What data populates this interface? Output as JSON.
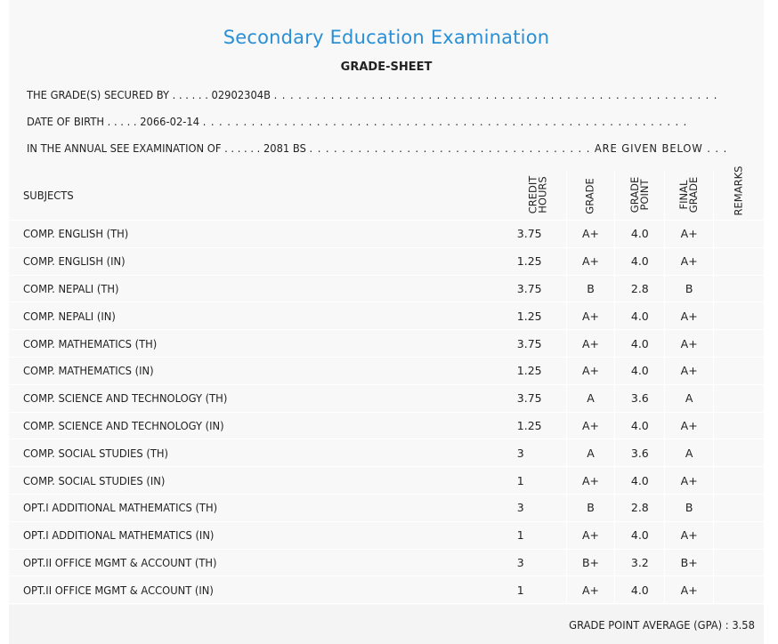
{
  "header": {
    "title": "Secondary Education Examination",
    "subtitle": "GRADE-SHEET"
  },
  "info": {
    "secured_by_label": "THE GRADE(S) SECURED BY . . . . . .",
    "symbol_number": "02902304B",
    "secured_by_tail": ". . . . . . . . . . . . . . . . . . . . . . . . . . . . . . . . . . . . . . . . . . . . . . . . . . . . . . .",
    "dob_label": "DATE OF BIRTH . . . . .",
    "dob": "2066-02-14",
    "dob_tail": ". . . . . . . . . . . . . . . . . . . . . . . . . . . . . . . . . . . . . . . . . . . . . . . . . . . . . . . . . . . .",
    "exam_label": "IN THE ANNUAL SEE EXAMINATION OF . . . . . .",
    "exam_year": "2081 BS",
    "exam_tail": ". . . . . . . . . . . . . . . . . . . . . . . . . . . . . . . . . . . ARE GIVEN BELOW . . ."
  },
  "table": {
    "headers": {
      "subjects": "SUBJECTS",
      "credit_hours_1": "CREDIT",
      "credit_hours_2": "HOURS",
      "grade": "GRADE",
      "grade_point_1": "GRADE",
      "grade_point_2": "POINT",
      "final_grade_1": "FINAL",
      "final_grade_2": "GRADE",
      "remarks": "REMARKS"
    },
    "rows": [
      {
        "subject": "COMP. ENGLISH (TH)",
        "credit": "3.75",
        "grade": "A+",
        "point": "4.0",
        "final": "A+",
        "remarks": ""
      },
      {
        "subject": "COMP. ENGLISH (IN)",
        "credit": "1.25",
        "grade": "A+",
        "point": "4.0",
        "final": "A+",
        "remarks": ""
      },
      {
        "subject": "COMP. NEPALI (TH)",
        "credit": "3.75",
        "grade": "B",
        "point": "2.8",
        "final": "B",
        "remarks": ""
      },
      {
        "subject": "COMP. NEPALI (IN)",
        "credit": "1.25",
        "grade": "A+",
        "point": "4.0",
        "final": "A+",
        "remarks": ""
      },
      {
        "subject": "COMP. MATHEMATICS (TH)",
        "credit": "3.75",
        "grade": "A+",
        "point": "4.0",
        "final": "A+",
        "remarks": ""
      },
      {
        "subject": "COMP. MATHEMATICS (IN)",
        "credit": "1.25",
        "grade": "A+",
        "point": "4.0",
        "final": "A+",
        "remarks": ""
      },
      {
        "subject": "COMP. SCIENCE AND TECHNOLOGY (TH)",
        "credit": "3.75",
        "grade": "A",
        "point": "3.6",
        "final": "A",
        "remarks": ""
      },
      {
        "subject": "COMP. SCIENCE AND TECHNOLOGY (IN)",
        "credit": "1.25",
        "grade": "A+",
        "point": "4.0",
        "final": "A+",
        "remarks": ""
      },
      {
        "subject": "COMP. SOCIAL STUDIES (TH)",
        "credit": "3",
        "grade": "A",
        "point": "3.6",
        "final": "A",
        "remarks": ""
      },
      {
        "subject": "COMP. SOCIAL STUDIES (IN)",
        "credit": "1",
        "grade": "A+",
        "point": "4.0",
        "final": "A+",
        "remarks": ""
      },
      {
        "subject": "OPT.I ADDITIONAL MATHEMATICS (TH)",
        "credit": "3",
        "grade": "B",
        "point": "2.8",
        "final": "B",
        "remarks": ""
      },
      {
        "subject": "OPT.I ADDITIONAL MATHEMATICS (IN)",
        "credit": "1",
        "grade": "A+",
        "point": "4.0",
        "final": "A+",
        "remarks": ""
      },
      {
        "subject": "OPT.II OFFICE MGMT & ACCOUNT (TH)",
        "credit": "3",
        "grade": "B+",
        "point": "3.2",
        "final": "B+",
        "remarks": ""
      },
      {
        "subject": "OPT.II OFFICE MGMT & ACCOUNT (IN)",
        "credit": "1",
        "grade": "A+",
        "point": "4.0",
        "final": "A+",
        "remarks": ""
      }
    ]
  },
  "footer": {
    "gpa_label": "GRADE POINT AVERAGE (GPA) :",
    "gpa_value": "3.58"
  },
  "colors": {
    "title": "#2a8fd4",
    "background": "#f8f8f8"
  }
}
